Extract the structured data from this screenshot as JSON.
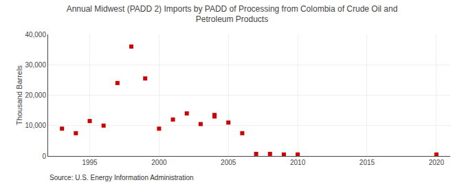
{
  "chart_data": {
    "type": "scatter",
    "title": "Annual Midwest (PADD 2) Imports by PADD of Processing from Colombia of Crude Oil and\nPetroleum Products",
    "ylabel": "Thousand Barrels",
    "source": "Source: U.S. Energy Information Administration",
    "color": "#cc0000",
    "marker": "square",
    "x": [
      1993,
      1994,
      1995,
      1996,
      1997,
      1998,
      1999,
      2000,
      2001,
      2002,
      2003,
      2004,
      2004,
      2005,
      2006,
      2007,
      2008,
      2009,
      2010,
      2020
    ],
    "values": [
      9000,
      7500,
      11500,
      10000,
      24000,
      36000,
      25500,
      9000,
      12000,
      14000,
      10500,
      13500,
      13000,
      11000,
      7500,
      700,
      700,
      500,
      500,
      500
    ],
    "xlim": [
      1992,
      2021
    ],
    "xticks": [
      1995,
      2000,
      2005,
      2010,
      2015,
      2020
    ],
    "ylim": [
      0,
      40000
    ],
    "yticks": [
      0,
      {
        "value": 10000,
        "label": "10,000"
      },
      {
        "value": 20000,
        "label": "20,000"
      },
      {
        "value": 30000,
        "label": "30,000"
      },
      {
        "value": 40000,
        "label": "40,000"
      }
    ],
    "grid": true
  }
}
